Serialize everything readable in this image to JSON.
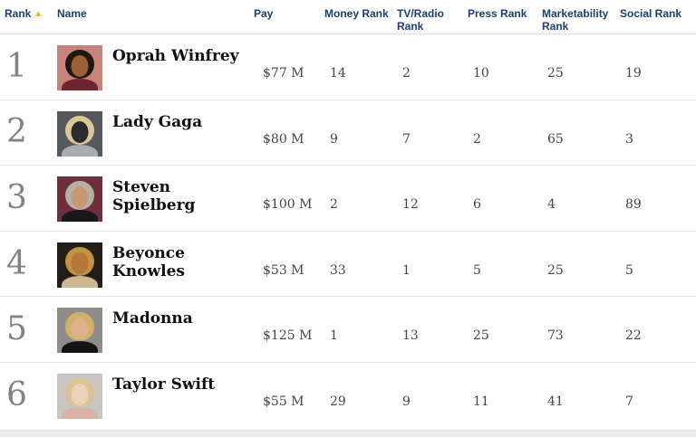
{
  "table_name": "celebrity-rank-table",
  "sort_arrow": "▲",
  "columns": [
    {
      "label": "Rank",
      "sorted": "ascending"
    },
    {
      "label": "Name"
    },
    {
      "label": "Pay"
    },
    {
      "label": "Money Rank"
    },
    {
      "label": "TV/Radio Rank"
    },
    {
      "label": "Press Rank"
    },
    {
      "label": "Marketability Rank"
    },
    {
      "label": "Social Rank"
    }
  ],
  "rows": [
    {
      "rank": "1",
      "name": "Oprah Winfrey",
      "pay": "$77 M",
      "money_rank": "14",
      "tv_radio_rank": "2",
      "press_rank": "10",
      "marketability_rank": "25",
      "social_rank": "19",
      "photo": {
        "label": "oprah-winfrey-photo",
        "bg": "#c4847c",
        "hair": "#231712",
        "skin": "#9c6038",
        "shirt": "#6e2430"
      }
    },
    {
      "rank": "2",
      "name": "Lady Gaga",
      "pay": "$80 M",
      "money_rank": "9",
      "tv_radio_rank": "7",
      "press_rank": "2",
      "marketability_rank": "65",
      "social_rank": "3",
      "photo": {
        "label": "lady-gaga-photo",
        "bg": "#55585c",
        "hair": "#d9c795",
        "skin": "#2b2b2e",
        "shirt": "#a8adb2"
      }
    },
    {
      "rank": "3",
      "name": "Steven Spielberg",
      "pay": "$100 M",
      "money_rank": "2",
      "tv_radio_rank": "12",
      "press_rank": "6",
      "marketability_rank": "4",
      "social_rank": "89",
      "photo": {
        "label": "steven-spielberg-photo",
        "bg": "#6e3038",
        "hair": "#b5b0a9",
        "skin": "#c79872",
        "shirt": "#17171c"
      }
    },
    {
      "rank": "4",
      "name": "Beyonce\nKnowles",
      "pay": "$53 M",
      "money_rank": "33",
      "tv_radio_rank": "1",
      "press_rank": "5",
      "marketability_rank": "25",
      "social_rank": "5",
      "photo": {
        "label": "beyonce-knowles-photo",
        "bg": "#241d18",
        "hair": "#c2923f",
        "skin": "#b5773f",
        "shirt": "#cdb894"
      }
    },
    {
      "rank": "5",
      "name": "Madonna",
      "pay": "$125 M",
      "money_rank": "1",
      "tv_radio_rank": "13",
      "press_rank": "25",
      "marketability_rank": "73",
      "social_rank": "22",
      "photo": {
        "label": "madonna-photo",
        "bg": "#8f8d89",
        "hair": "#d3b06a",
        "skin": "#dbb28c",
        "shirt": "#141414"
      }
    },
    {
      "rank": "6",
      "name": "Taylor Swift",
      "pay": "$55 M",
      "money_rank": "29",
      "tv_radio_rank": "9",
      "press_rank": "11",
      "marketability_rank": "41",
      "social_rank": "7",
      "photo": {
        "label": "taylor-swift-photo",
        "bg": "#c9c5c0",
        "hair": "#dec392",
        "skin": "#ecd2ba",
        "shirt": "#d8b3a4"
      }
    }
  ],
  "colors": {
    "header_text": "#1c3e70",
    "sort_arrow": "#f2af1d",
    "rank_number": "#828282",
    "name_text": "#0f0f0f",
    "value_text": "#454545",
    "row_divider": "#e3e3e3",
    "footer_band": "#ececec",
    "background": "#ffffff"
  }
}
